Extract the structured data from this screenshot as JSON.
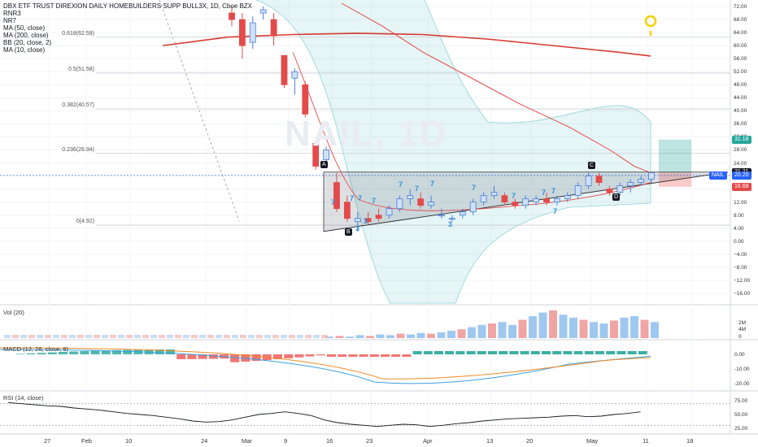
{
  "legend": {
    "title": "DBX ETF TRUST DIREXION DAILY HOMEBUILDERS SUPP BULL3X, 1D, Cboe BZX",
    "items": [
      "RNR3",
      "NR7",
      "MA (50, close)",
      "MA (200, close)",
      "BB (20, close, 2)",
      "MA (10, close)"
    ]
  },
  "watermark": "NAIL, 1D",
  "colors": {
    "up": "#4a7ed8",
    "down": "#e34a4a",
    "ma50": "#e34a4a",
    "ma200": "#d63b2f",
    "bb": "#8fd3d8",
    "rsi": "#131722",
    "macd": "#3aa0e0",
    "signal": "#f08a24",
    "volUp": "#9fc8ef",
    "volDown": "#f0a5a5",
    "histUp": "#26a69a",
    "histDown": "#ef5350"
  },
  "chart_data": {
    "type": "candlestick",
    "price_axis": {
      "ticks": [
        72,
        68,
        64,
        60,
        56,
        52,
        48,
        44,
        40,
        36,
        32,
        28,
        24,
        20,
        16,
        12,
        8,
        4,
        0,
        -4,
        -8,
        -12,
        -16
      ],
      "ylim": [
        -19,
        73
      ]
    },
    "x_ticks": [
      "27",
      "Feb",
      "10",
      "24",
      "Mar",
      "9",
      "16",
      "23",
      "Apr",
      "13",
      "20",
      "May",
      "11",
      "18"
    ],
    "fib_levels": [
      {
        "label": "0.618(62.59)",
        "value": 62.59
      },
      {
        "label": "0.5(51.58)",
        "value": 51.58
      },
      {
        "label": "0.382(40.57)",
        "value": 40.57
      },
      {
        "label": "0.236(26.94)",
        "value": 26.94
      },
      {
        "label": "0(4.92)",
        "value": 4.92
      }
    ],
    "price_labels": [
      {
        "text": "31.18",
        "value": 31.18,
        "color": "#26a69a"
      },
      {
        "text": "21.21",
        "value": 21.21,
        "color": "#131722"
      },
      {
        "text": "NAIL",
        "value": 20.2,
        "color": "#2962ff"
      },
      {
        "text": "20.20",
        "value": 20.2,
        "color": "#2962ff"
      },
      {
        "text": "16.68",
        "value": 16.68,
        "color": "#e34a4a"
      }
    ],
    "candles": [
      {
        "o": 70,
        "h": 72,
        "l": 66,
        "c": 68
      },
      {
        "o": 68,
        "h": 70,
        "l": 56,
        "c": 60
      },
      {
        "o": 61,
        "h": 69,
        "l": 59,
        "c": 67
      },
      {
        "o": 70,
        "h": 72,
        "l": 68,
        "c": 71
      },
      {
        "o": 68,
        "h": 70,
        "l": 60,
        "c": 63
      },
      {
        "o": 57,
        "h": 57,
        "l": 47,
        "c": 48
      },
      {
        "o": 50,
        "h": 53,
        "l": 45,
        "c": 52
      },
      {
        "o": 48,
        "h": 49,
        "l": 38,
        "c": 39
      },
      {
        "o": 30,
        "h": 31,
        "l": 22,
        "c": 23
      },
      {
        "o": 25,
        "h": 29,
        "l": 23,
        "c": 28
      },
      {
        "o": 18,
        "h": 21,
        "l": 9,
        "c": 10
      },
      {
        "o": 12,
        "h": 14,
        "l": 6,
        "c": 7
      },
      {
        "o": 6,
        "h": 9,
        "l": 3,
        "c": 7
      },
      {
        "o": 7,
        "h": 9,
        "l": 5,
        "c": 6
      },
      {
        "o": 8,
        "h": 10,
        "l": 6,
        "c": 7
      },
      {
        "o": 8,
        "h": 11,
        "l": 7,
        "c": 10
      },
      {
        "o": 10,
        "h": 14,
        "l": 9,
        "c": 13
      },
      {
        "o": 13,
        "h": 16,
        "l": 11,
        "c": 14
      },
      {
        "o": 13,
        "h": 15,
        "l": 10,
        "c": 11
      },
      {
        "o": 11,
        "h": 14,
        "l": 10,
        "c": 12
      },
      {
        "o": 8,
        "h": 10,
        "l": 7,
        "c": 8
      },
      {
        "o": 7,
        "h": 8,
        "l": 6,
        "c": 7
      },
      {
        "o": 8,
        "h": 10,
        "l": 7,
        "c": 9
      },
      {
        "o": 9,
        "h": 13,
        "l": 8,
        "c": 12
      },
      {
        "o": 12,
        "h": 15,
        "l": 11,
        "c": 14
      },
      {
        "o": 14,
        "h": 17,
        "l": 13,
        "c": 15
      },
      {
        "o": 14,
        "h": 15,
        "l": 11,
        "c": 12
      },
      {
        "o": 12,
        "h": 13,
        "l": 10,
        "c": 11
      },
      {
        "o": 11,
        "h": 14,
        "l": 10,
        "c": 13
      },
      {
        "o": 12,
        "h": 14,
        "l": 11,
        "c": 13
      },
      {
        "o": 13,
        "h": 15,
        "l": 11,
        "c": 12
      },
      {
        "o": 12,
        "h": 14,
        "l": 11,
        "c": 13
      },
      {
        "o": 13,
        "h": 15,
        "l": 12,
        "c": 14
      },
      {
        "o": 14,
        "h": 18,
        "l": 13,
        "c": 17
      },
      {
        "o": 17,
        "h": 21,
        "l": 16,
        "c": 20
      },
      {
        "o": 20,
        "h": 21,
        "l": 17,
        "c": 18
      },
      {
        "o": 16,
        "h": 17,
        "l": 14,
        "c": 15
      },
      {
        "o": 15,
        "h": 18,
        "l": 14,
        "c": 17
      },
      {
        "o": 17,
        "h": 19,
        "l": 15,
        "c": 18
      },
      {
        "o": 18,
        "h": 20,
        "l": 17,
        "c": 19
      },
      {
        "o": 19,
        "h": 21,
        "l": 18,
        "c": 21
      }
    ],
    "candle_x_start": 285,
    "candle_x_step": 12.9,
    "ma200": [
      60.0,
      62.6,
      63.4,
      63.8,
      63.4,
      62.0,
      60.0,
      58.0,
      56.8
    ],
    "ma50": [
      73,
      66,
      58,
      50,
      42,
      35,
      28,
      23,
      21
    ],
    "annotations": [
      "A",
      "B",
      "C",
      "D"
    ],
    "sub_panels": [
      {
        "name": "Vol (20)",
        "ticks": [
          "4M",
          "2M",
          "0"
        ]
      },
      {
        "name": "MACD (12, 26, close, 9)",
        "ticks": [
          "0.00",
          "-10.00",
          "-20.00"
        ]
      },
      {
        "name": "RSI (14, close)",
        "ticks": [
          "75.00",
          "50.00",
          "25.00"
        ]
      }
    ],
    "rsi": [
      72,
      70,
      68,
      66,
      65,
      62,
      60,
      58,
      55,
      52,
      50,
      48,
      45,
      42,
      38,
      36,
      37,
      40,
      45,
      50,
      52,
      55,
      52,
      48,
      40,
      35,
      32,
      30,
      28,
      30,
      32,
      31,
      28,
      30,
      33,
      35,
      38,
      40,
      42,
      43,
      44,
      45,
      47,
      48,
      46,
      47,
      50,
      52,
      55
    ],
    "volume": [
      0.2,
      0.3,
      0.2,
      0.4,
      0.3,
      0.5,
      0.4,
      0.6,
      0.5,
      0.7,
      0.6,
      0.8,
      1.0,
      1.2,
      1.5,
      1.8,
      2.0,
      2.2,
      1.8,
      2.5,
      3.0,
      3.5,
      3.8,
      3.2,
      2.8,
      2.5,
      2.2,
      2.0,
      2.4,
      2.8,
      3.0,
      2.5,
      2.2
    ]
  }
}
